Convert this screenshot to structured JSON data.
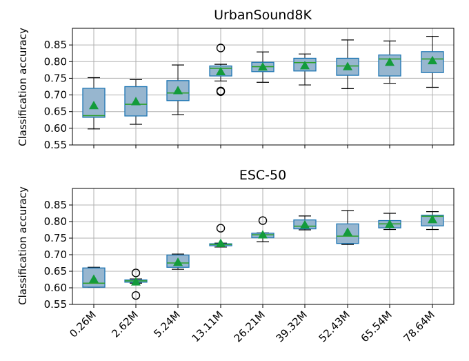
{
  "chart_data": [
    {
      "type": "box",
      "title": "UrbanSound8K",
      "ylabel": "Classification accuracy",
      "xlabel": "",
      "categories": [],
      "ylim": [
        0.55,
        0.9
      ],
      "yticks": [
        "0.55",
        "0.60",
        "0.65",
        "0.70",
        "0.75",
        "0.80",
        "0.85"
      ],
      "grid": true,
      "colors": {
        "box": "#97b6cf",
        "box_edge": "#1f77b4",
        "median": "#2ca02c",
        "mean": "#139b3b"
      },
      "boxes": [
        {
          "whislo": 0.598,
          "q1": 0.633,
          "med": 0.638,
          "q3": 0.72,
          "whishi": 0.752,
          "mean": 0.668,
          "fliers": []
        },
        {
          "whislo": 0.612,
          "q1": 0.637,
          "med": 0.672,
          "q3": 0.725,
          "whishi": 0.746,
          "mean": 0.68,
          "fliers": []
        },
        {
          "whislo": 0.641,
          "q1": 0.683,
          "med": 0.706,
          "q3": 0.743,
          "whishi": 0.79,
          "mean": 0.713,
          "fliers": []
        },
        {
          "whislo": 0.742,
          "q1": 0.757,
          "med": 0.78,
          "q3": 0.787,
          "whishi": 0.792,
          "mean": 0.77,
          "fliers": [
            0.841,
            0.712,
            0.71
          ]
        },
        {
          "whislo": 0.738,
          "q1": 0.77,
          "med": 0.785,
          "q3": 0.798,
          "whishi": 0.829,
          "mean": 0.784,
          "fliers": []
        },
        {
          "whislo": 0.73,
          "q1": 0.772,
          "med": 0.797,
          "q3": 0.81,
          "whishi": 0.823,
          "mean": 0.788,
          "fliers": []
        },
        {
          "whislo": 0.719,
          "q1": 0.759,
          "med": 0.787,
          "q3": 0.81,
          "whishi": 0.865,
          "mean": 0.785,
          "fliers": []
        },
        {
          "whislo": 0.735,
          "q1": 0.757,
          "med": 0.808,
          "q3": 0.82,
          "whishi": 0.862,
          "mean": 0.798,
          "fliers": []
        },
        {
          "whislo": 0.723,
          "q1": 0.767,
          "med": 0.808,
          "q3": 0.83,
          "whishi": 0.876,
          "mean": 0.803,
          "fliers": []
        }
      ]
    },
    {
      "type": "box",
      "title": "ESC-50",
      "ylabel": "Classification accuracy",
      "xlabel": "",
      "categories": [
        "0.26M",
        "2.62M",
        "5.24M",
        "13.11M",
        "26.21M",
        "39.32M",
        "52.43M",
        "65.54M",
        "78.64M"
      ],
      "ylim": [
        0.55,
        0.9
      ],
      "yticks": [
        "0.55",
        "0.60",
        "0.65",
        "0.70",
        "0.75",
        "0.80",
        "0.85"
      ],
      "grid": true,
      "colors": {
        "box": "#97b6cf",
        "box_edge": "#1f77b4",
        "median": "#2ca02c",
        "mean": "#139b3b"
      },
      "boxes": [
        {
          "whislo": 0.602,
          "q1": 0.602,
          "med": 0.614,
          "q3": 0.66,
          "whishi": 0.662,
          "mean": 0.626,
          "fliers": []
        },
        {
          "whislo": 0.614,
          "q1": 0.617,
          "med": 0.621,
          "q3": 0.624,
          "whishi": 0.627,
          "mean": 0.618,
          "fliers": [
            0.645,
            0.577
          ]
        },
        {
          "whislo": 0.656,
          "q1": 0.662,
          "med": 0.675,
          "q3": 0.699,
          "whishi": 0.702,
          "mean": 0.677,
          "fliers": []
        },
        {
          "whislo": 0.723,
          "q1": 0.727,
          "med": 0.731,
          "q3": 0.733,
          "whishi": 0.735,
          "mean": 0.734,
          "fliers": [
            0.78
          ]
        },
        {
          "whislo": 0.739,
          "q1": 0.751,
          "med": 0.76,
          "q3": 0.765,
          "whishi": 0.766,
          "mean": 0.76,
          "fliers": [
            0.803
          ]
        },
        {
          "whislo": 0.775,
          "q1": 0.778,
          "med": 0.786,
          "q3": 0.805,
          "whishi": 0.817,
          "mean": 0.79,
          "fliers": []
        },
        {
          "whislo": 0.731,
          "q1": 0.734,
          "med": 0.756,
          "q3": 0.793,
          "whishi": 0.833,
          "mean": 0.768,
          "fliers": []
        },
        {
          "whislo": 0.776,
          "q1": 0.781,
          "med": 0.793,
          "q3": 0.803,
          "whishi": 0.825,
          "mean": 0.792,
          "fliers": []
        },
        {
          "whislo": 0.776,
          "q1": 0.787,
          "med": 0.816,
          "q3": 0.819,
          "whishi": 0.83,
          "mean": 0.806,
          "fliers": []
        }
      ]
    }
  ]
}
